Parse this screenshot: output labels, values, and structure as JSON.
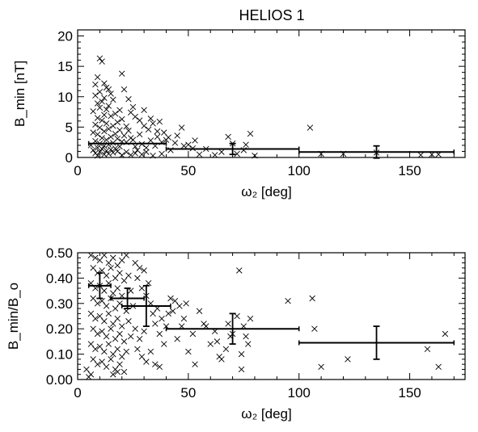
{
  "figure_title": "HELIOS 1",
  "chart_data": [
    {
      "type": "scatter",
      "title": "HELIOS 1",
      "xlabel": "ω₂ [deg]",
      "ylabel": "B_min [nT]",
      "xlim": [
        0,
        175
      ],
      "ylim": [
        0,
        21
      ],
      "x_ticks": [
        0,
        50,
        100,
        150
      ],
      "y_ticks": [
        0,
        5,
        10,
        15,
        20
      ],
      "x_tick_labels": [
        "0",
        "50",
        "100",
        "150"
      ],
      "y_tick_labels": [
        "0",
        "5",
        "10",
        "15",
        "20"
      ],
      "marker": "x",
      "grid": false,
      "points": [
        [
          10,
          16.3
        ],
        [
          11,
          15.8
        ],
        [
          9,
          13.2
        ],
        [
          12,
          12.2
        ],
        [
          8,
          12
        ],
        [
          13,
          11.5
        ],
        [
          14,
          11.2
        ],
        [
          10,
          10.8
        ],
        [
          15,
          10.5
        ],
        [
          8,
          10.2
        ],
        [
          12,
          9.8
        ],
        [
          16,
          9.5
        ],
        [
          11,
          9.2
        ],
        [
          9,
          8.9
        ],
        [
          14,
          8.5
        ],
        [
          10,
          8.2
        ],
        [
          13,
          7.9
        ],
        [
          7,
          7.6
        ],
        [
          19,
          7.8
        ],
        [
          17,
          7.2
        ],
        [
          12,
          7
        ],
        [
          15,
          6.8
        ],
        [
          9,
          6.5
        ],
        [
          20,
          6.3
        ],
        [
          11,
          6.1
        ],
        [
          18,
          5.8
        ],
        [
          13,
          5.6
        ],
        [
          8,
          5.4
        ],
        [
          16,
          5.2
        ],
        [
          22,
          5.1
        ],
        [
          10,
          4.9
        ],
        [
          14,
          4.7
        ],
        [
          19,
          4.5
        ],
        [
          12,
          4.3
        ],
        [
          7,
          4.1
        ],
        [
          17,
          3.9
        ],
        [
          9,
          3.8
        ],
        [
          21,
          3.6
        ],
        [
          15,
          3.4
        ],
        [
          11,
          3.2
        ],
        [
          18,
          3.1
        ],
        [
          13,
          2.9
        ],
        [
          8,
          2.7
        ],
        [
          20,
          2.6
        ],
        [
          16,
          2.4
        ],
        [
          10,
          2.3
        ],
        [
          14,
          2.1
        ],
        [
          6,
          2
        ],
        [
          12,
          1.9
        ],
        [
          19,
          1.8
        ],
        [
          9,
          1.6
        ],
        [
          17,
          1.5
        ],
        [
          11,
          1.4
        ],
        [
          15,
          1.3
        ],
        [
          7,
          1.2
        ],
        [
          13,
          1.1
        ],
        [
          18,
          1
        ],
        [
          10,
          0.9
        ],
        [
          16,
          0.8
        ],
        [
          8,
          0.7
        ],
        [
          14,
          0.6
        ],
        [
          12,
          0.5
        ],
        [
          20,
          0.4
        ],
        [
          9,
          0.3
        ],
        [
          22,
          2.5
        ],
        [
          24,
          3.2
        ],
        [
          26,
          1.8
        ],
        [
          23,
          4.4
        ],
        [
          25,
          2.9
        ],
        [
          27,
          1.2
        ],
        [
          28,
          3.8
        ],
        [
          29,
          2.2
        ],
        [
          30,
          5.2
        ],
        [
          31,
          1.6
        ],
        [
          32,
          4.6
        ],
        [
          33,
          2.8
        ],
        [
          34,
          5.6
        ],
        [
          35,
          1.9
        ],
        [
          36,
          3.4
        ],
        [
          37,
          5.9
        ],
        [
          38,
          2.5
        ],
        [
          39,
          4.1
        ],
        [
          21,
          11.2
        ],
        [
          23,
          9.6
        ],
        [
          25,
          8.3
        ],
        [
          26,
          6.7
        ],
        [
          24,
          7.4
        ],
        [
          28,
          6.1
        ],
        [
          30,
          7.8
        ],
        [
          33,
          6.4
        ],
        [
          36,
          4.3
        ],
        [
          40,
          2.9
        ],
        [
          42,
          1.2
        ],
        [
          45,
          3.6
        ],
        [
          47,
          4.9
        ],
        [
          50,
          2.1
        ],
        [
          52,
          1.5
        ],
        [
          55,
          0.5
        ],
        [
          58,
          1.4
        ],
        [
          62,
          0.4
        ],
        [
          65,
          0.9
        ],
        [
          68,
          3.4
        ],
        [
          70,
          2.3
        ],
        [
          72,
          0.6
        ],
        [
          75,
          1.2
        ],
        [
          76,
          2.1
        ],
        [
          78,
          3.9
        ],
        [
          80,
          0.3
        ],
        [
          105,
          4.9
        ],
        [
          110,
          0.6
        ],
        [
          120,
          0.6
        ],
        [
          135,
          0.8
        ],
        [
          155,
          0.4
        ],
        [
          160,
          0.5
        ],
        [
          163,
          0.5
        ],
        [
          20,
          13.8
        ],
        [
          22,
          0.9
        ],
        [
          24,
          0.4
        ],
        [
          26,
          0.7
        ],
        [
          29,
          0.5
        ],
        [
          31,
          0.9
        ],
        [
          34,
          0.3
        ],
        [
          38,
          0.6
        ],
        [
          41,
          3.3
        ],
        [
          44,
          2.4
        ],
        [
          48,
          1.9
        ],
        [
          53,
          2.8
        ]
      ],
      "bins": [
        {
          "x_range": [
            5,
            40
          ],
          "center": 22.5,
          "value": 2.3,
          "err": 0
        },
        {
          "x_range": [
            40,
            100
          ],
          "center": 70,
          "value": 1.4,
          "err": 0.9
        },
        {
          "x_range": [
            100,
            170
          ],
          "center": 135,
          "value": 0.9,
          "err": 1.0
        }
      ]
    },
    {
      "type": "scatter",
      "title": "",
      "xlabel": "ω₂ [deg]",
      "ylabel": "B_min/B_o",
      "xlim": [
        0,
        175
      ],
      "ylim": [
        0,
        0.5
      ],
      "x_ticks": [
        0,
        50,
        100,
        150
      ],
      "y_ticks": [
        0,
        0.1,
        0.2,
        0.3,
        0.4,
        0.5
      ],
      "x_tick_labels": [
        "0",
        "50",
        "100",
        "150"
      ],
      "y_tick_labels": [
        "0.00",
        "0.10",
        "0.20",
        "0.30",
        "0.40",
        "0.50"
      ],
      "marker": "x",
      "grid": false,
      "points": [
        [
          6,
          0.49
        ],
        [
          8,
          0.48
        ],
        [
          10,
          0.47
        ],
        [
          12,
          0.49
        ],
        [
          14,
          0.46
        ],
        [
          16,
          0.48
        ],
        [
          18,
          0.45
        ],
        [
          20,
          0.47
        ],
        [
          22,
          0.49
        ],
        [
          7,
          0.44
        ],
        [
          9,
          0.42
        ],
        [
          11,
          0.43
        ],
        [
          13,
          0.41
        ],
        [
          15,
          0.44
        ],
        [
          17,
          0.4
        ],
        [
          19,
          0.42
        ],
        [
          21,
          0.39
        ],
        [
          23,
          0.41
        ],
        [
          6,
          0.38
        ],
        [
          8,
          0.36
        ],
        [
          10,
          0.37
        ],
        [
          12,
          0.35
        ],
        [
          14,
          0.38
        ],
        [
          16,
          0.34
        ],
        [
          18,
          0.36
        ],
        [
          20,
          0.33
        ],
        [
          24,
          0.35
        ],
        [
          7,
          0.32
        ],
        [
          9,
          0.3
        ],
        [
          11,
          0.31
        ],
        [
          13,
          0.29
        ],
        [
          15,
          0.32
        ],
        [
          17,
          0.28
        ],
        [
          19,
          0.3
        ],
        [
          22,
          0.27
        ],
        [
          25,
          0.29
        ],
        [
          6,
          0.26
        ],
        [
          8,
          0.24
        ],
        [
          10,
          0.25
        ],
        [
          12,
          0.23
        ],
        [
          14,
          0.26
        ],
        [
          16,
          0.22
        ],
        [
          18,
          0.24
        ],
        [
          20,
          0.21
        ],
        [
          23,
          0.23
        ],
        [
          7,
          0.2
        ],
        [
          9,
          0.18
        ],
        [
          11,
          0.19
        ],
        [
          13,
          0.17
        ],
        [
          15,
          0.2
        ],
        [
          17,
          0.16
        ],
        [
          19,
          0.18
        ],
        [
          21,
          0.15
        ],
        [
          24,
          0.17
        ],
        [
          6,
          0.14
        ],
        [
          8,
          0.12
        ],
        [
          10,
          0.13
        ],
        [
          12,
          0.11
        ],
        [
          14,
          0.14
        ],
        [
          16,
          0.1
        ],
        [
          18,
          0.12
        ],
        [
          20,
          0.09
        ],
        [
          22,
          0.11
        ],
        [
          7,
          0.08
        ],
        [
          9,
          0.06
        ],
        [
          11,
          0.07
        ],
        [
          13,
          0.05
        ],
        [
          15,
          0.08
        ],
        [
          17,
          0.04
        ],
        [
          19,
          0.06
        ],
        [
          21,
          0.03
        ],
        [
          6,
          0.02
        ],
        [
          4,
          0.04
        ],
        [
          5,
          0.01
        ],
        [
          16,
          0.02
        ],
        [
          18,
          0.03
        ],
        [
          26,
          0.46
        ],
        [
          27,
          0.4
        ],
        [
          28,
          0.44
        ],
        [
          29,
          0.36
        ],
        [
          30,
          0.43
        ],
        [
          31,
          0.33
        ],
        [
          32,
          0.38
        ],
        [
          33,
          0.3
        ],
        [
          34,
          0.26
        ],
        [
          35,
          0.22
        ],
        [
          36,
          0.28
        ],
        [
          37,
          0.18
        ],
        [
          38,
          0.24
        ],
        [
          39,
          0.14
        ],
        [
          26,
          0.2
        ],
        [
          27,
          0.12
        ],
        [
          28,
          0.16
        ],
        [
          29,
          0.09
        ],
        [
          30,
          0.19
        ],
        [
          31,
          0.07
        ],
        [
          33,
          0.11
        ],
        [
          35,
          0.06
        ],
        [
          37,
          0.05
        ],
        [
          40,
          0.21
        ],
        [
          42,
          0.32
        ],
        [
          43,
          0.27
        ],
        [
          44,
          0.31
        ],
        [
          45,
          0.16
        ],
        [
          46,
          0.29
        ],
        [
          47,
          0.21
        ],
        [
          48,
          0.24
        ],
        [
          50,
          0.11
        ],
        [
          52,
          0.18
        ],
        [
          55,
          0.27
        ],
        [
          58,
          0.21
        ],
        [
          60,
          0.14
        ],
        [
          62,
          0.19
        ],
        [
          64,
          0.09
        ],
        [
          65,
          0.08
        ],
        [
          67,
          0.12
        ],
        [
          68,
          0.22
        ],
        [
          70,
          0.18
        ],
        [
          72,
          0.25
        ],
        [
          73,
          0.43
        ],
        [
          74,
          0.1
        ],
        [
          75,
          0.21
        ],
        [
          76,
          0.17
        ],
        [
          77,
          0.14
        ],
        [
          78,
          0.24
        ],
        [
          74,
          0.04
        ],
        [
          95,
          0.31
        ],
        [
          106,
          0.32
        ],
        [
          107,
          0.2
        ],
        [
          110,
          0.05
        ],
        [
          122,
          0.08
        ],
        [
          158,
          0.12
        ],
        [
          163,
          0.05
        ],
        [
          166,
          0.18
        ],
        [
          41,
          0.26
        ],
        [
          49,
          0.3
        ],
        [
          53,
          0.06
        ],
        [
          57,
          0.22
        ],
        [
          63,
          0.15
        ],
        [
          69,
          0.17
        ]
      ],
      "bins": [
        {
          "x_range": [
            5,
            15
          ],
          "center": 10,
          "value": 0.37,
          "err": 0.05
        },
        {
          "x_range": [
            15,
            30
          ],
          "center": 22.5,
          "value": 0.32,
          "err": 0.04
        },
        {
          "x_range": [
            20,
            42
          ],
          "center": 31,
          "value": 0.29,
          "err": 0.08
        },
        {
          "x_range": [
            40,
            100
          ],
          "center": 70,
          "value": 0.2,
          "err": 0.06
        },
        {
          "x_range": [
            100,
            170
          ],
          "center": 135,
          "value": 0.145,
          "err": 0.065
        }
      ]
    }
  ]
}
